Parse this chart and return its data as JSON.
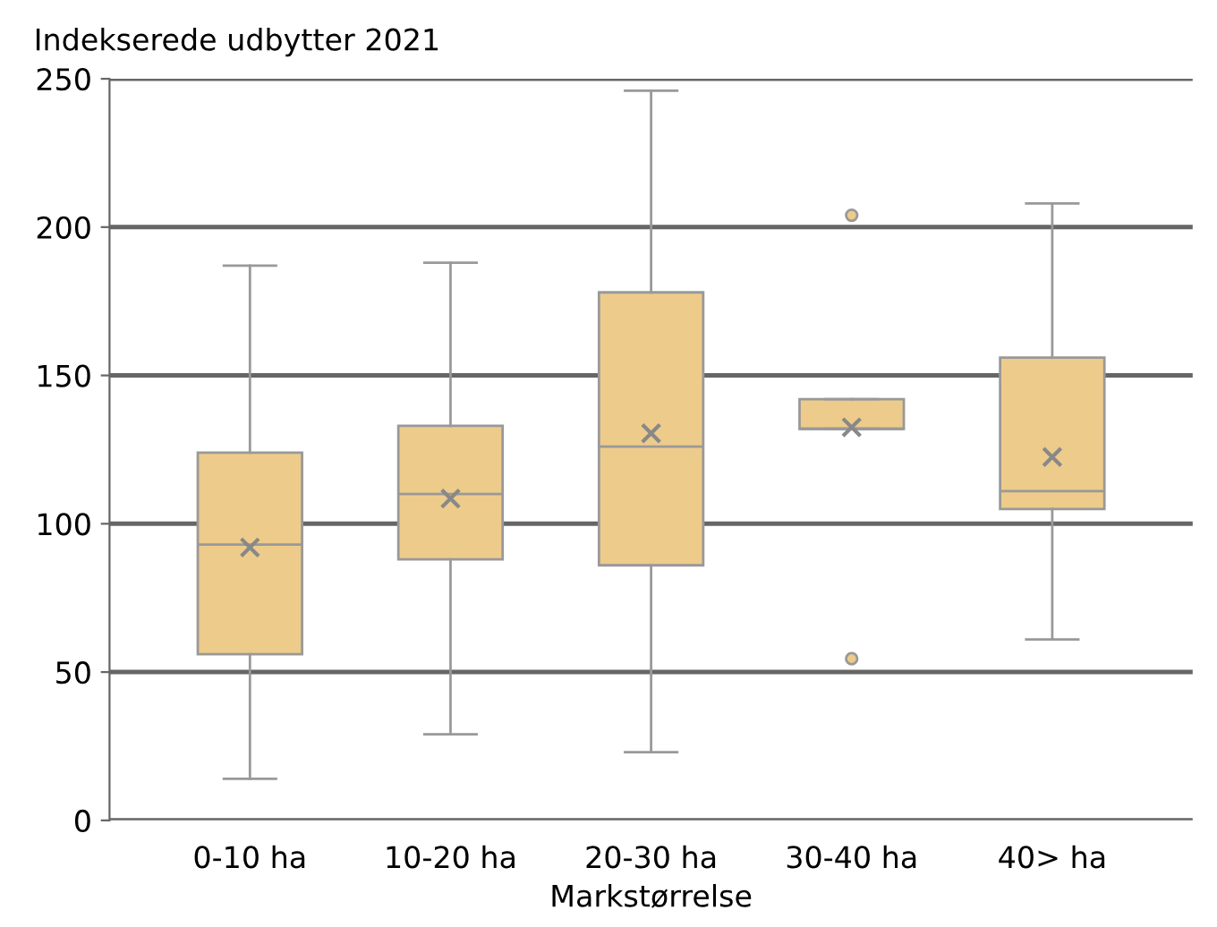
{
  "chart_data": {
    "type": "box",
    "ylabel": "Indekserede udbytter 2021",
    "xlabel": "Markstørrelse",
    "categories": [
      "0-10 ha",
      "10-20 ha",
      "20-30 ha",
      "30-40 ha",
      "40> ha"
    ],
    "color": "#edcb8b",
    "ylim": [
      0,
      250
    ],
    "yticks": [
      0,
      50,
      100,
      150,
      200,
      250
    ],
    "grid": "y",
    "boxes": [
      {
        "low": 14,
        "q1": 56,
        "median": 93,
        "q3": 124,
        "high": 187,
        "mean": 92
      },
      {
        "low": 29,
        "q1": 88,
        "median": 110,
        "q3": 133,
        "high": 188,
        "mean": 108.5
      },
      {
        "low": 23,
        "q1": 86,
        "median": 126,
        "q3": 178,
        "high": 246,
        "mean": 130.5
      },
      {
        "low": 132,
        "q1": 132,
        "median": 132,
        "q3": 142,
        "high": 142,
        "mean": 132.5,
        "outliers": [
          204,
          54.5
        ]
      },
      {
        "low": 61,
        "q1": 105,
        "median": 111,
        "q3": 156,
        "high": 208,
        "mean": 122.5
      }
    ]
  }
}
